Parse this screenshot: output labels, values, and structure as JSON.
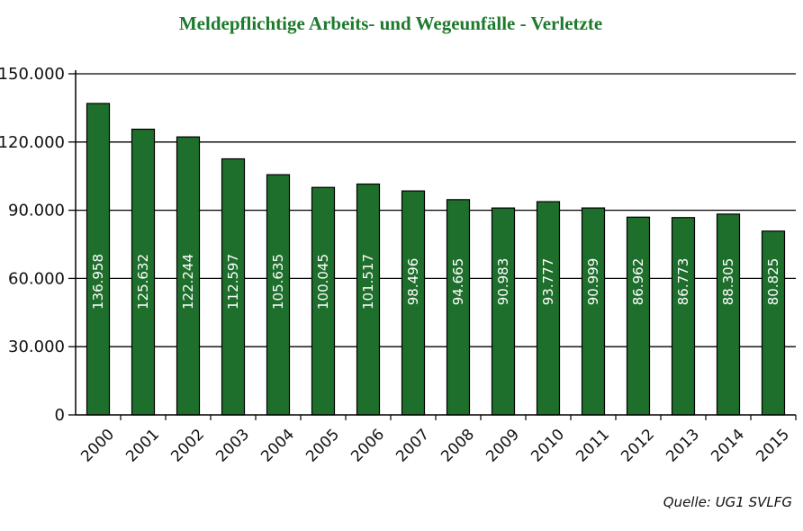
{
  "chart_data": {
    "type": "bar",
    "title": "Meldepflichtige Arbeits- und Wegeunfälle - Verletzte",
    "categories": [
      "2000",
      "2001",
      "2002",
      "2003",
      "2004",
      "2005",
      "2006",
      "2007",
      "2008",
      "2009",
      "2010",
      "2011",
      "2012",
      "2013",
      "2014",
      "2015"
    ],
    "values": [
      136958,
      125632,
      122244,
      112597,
      105635,
      100045,
      101517,
      98496,
      94665,
      90983,
      93777,
      90999,
      86962,
      86773,
      88305,
      80825
    ],
    "value_labels": [
      "136.958",
      "125.632",
      "122.244",
      "112.597",
      "105.635",
      "100.045",
      "101.517",
      "98.496",
      "94.665",
      "90.983",
      "93.777",
      "90.999",
      "86.962",
      "86.773",
      "88.305",
      "80.825"
    ],
    "y_ticks": [
      0,
      30000,
      60000,
      90000,
      120000,
      150000
    ],
    "y_tick_labels": [
      "0",
      "30.000",
      "60.000",
      "90.000",
      "120.000",
      "150.000"
    ],
    "ylim": [
      0,
      150000
    ],
    "xlabel": "",
    "ylabel": "",
    "grid": true,
    "bar_color": "#1e6e2c",
    "title_color": "#1d7a2c"
  },
  "source": "Quelle: UG1 SVLFG"
}
